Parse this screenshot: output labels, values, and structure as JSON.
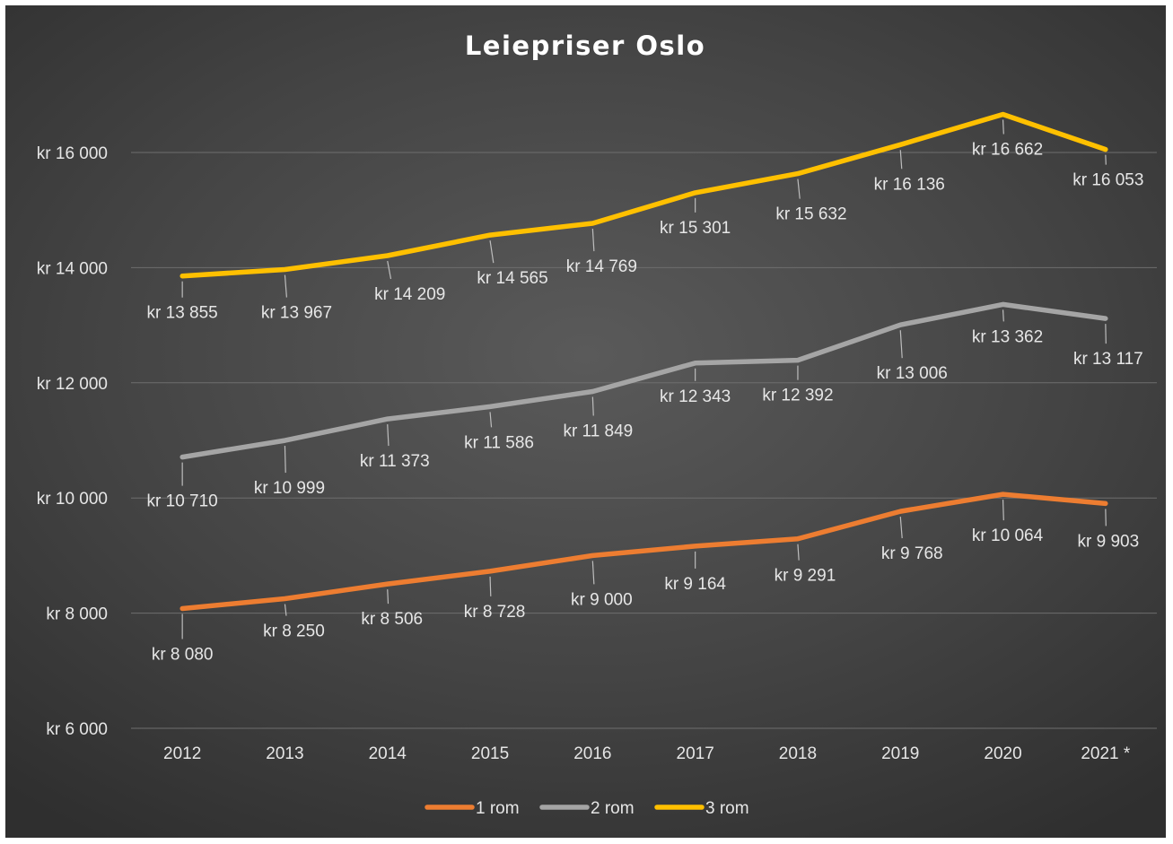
{
  "chart_data": {
    "type": "line",
    "title": "Leiepriser Oslo",
    "xlabel": "",
    "ylabel": "",
    "categories": [
      "2012",
      "2013",
      "2014",
      "2015",
      "2016",
      "2017",
      "2018",
      "2019",
      "2020",
      "2021 *"
    ],
    "ylim": [
      6000,
      17500
    ],
    "yticks": [
      6000,
      8000,
      10000,
      12000,
      14000,
      16000
    ],
    "ytick_labels": [
      "kr 6 000",
      "kr 8 000",
      "kr 10 000",
      "kr 12 000",
      "kr 14 000",
      "kr 16 000"
    ],
    "grid": true,
    "legend_position": "bottom",
    "series": [
      {
        "name": "1 rom",
        "color": "#ed7d31",
        "values": [
          8080,
          8250,
          8506,
          8728,
          9000,
          9164,
          9291,
          9768,
          10064,
          9903
        ],
        "labels": [
          "kr 8 080",
          "kr 8 250",
          "kr 8 506",
          "kr 8 728",
          "kr 9 000",
          "kr 9 164",
          "kr 9 291",
          "kr 9 768",
          "kr 10 064",
          "kr 9 903"
        ]
      },
      {
        "name": "2 rom",
        "color": "#a5a5a5",
        "values": [
          10710,
          10999,
          11373,
          11586,
          11849,
          12343,
          12392,
          13006,
          13362,
          13117
        ],
        "labels": [
          "kr 10 710",
          "kr 10 999",
          "kr 11 373",
          "kr 11 586",
          "kr 11 849",
          "kr 12 343",
          "kr 12 392",
          "kr 13 006",
          "kr 13 362",
          "kr 13 117"
        ]
      },
      {
        "name": "3 rom",
        "color": "#ffc000",
        "values": [
          13855,
          13967,
          14209,
          14565,
          14769,
          15301,
          15632,
          16136,
          16662,
          16053
        ],
        "labels": [
          "kr 13 855",
          "kr 13 967",
          "kr 14 209",
          "kr 14 565",
          "kr 14 769",
          "kr 15 301",
          "kr 15 632",
          "kr 16 136",
          "kr 16 662",
          "kr 16 053"
        ]
      }
    ]
  }
}
